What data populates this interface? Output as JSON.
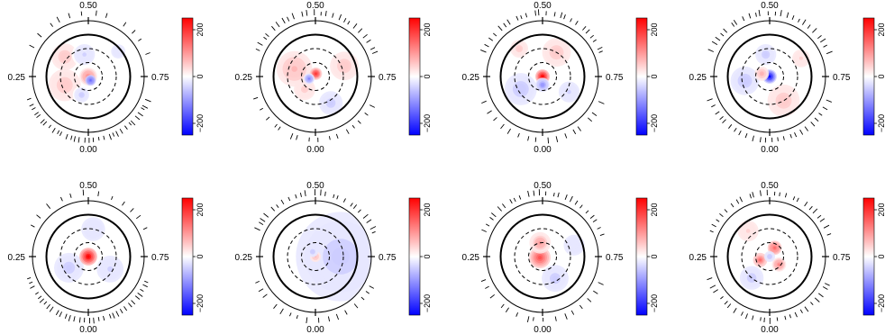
{
  "chart_data": {
    "type": "heatmap",
    "description_values": "polar Doppler-map panels; colour scale in map units",
    "colorbar": {
      "min": -250,
      "max": 250,
      "ticks": [
        200,
        0,
        -200
      ],
      "tick_labels": [
        "200",
        "0",
        "−200"
      ],
      "colors": {
        "max": "#ff0000",
        "mid": "#ffffff",
        "min": "#0000ff"
      }
    },
    "phase_labels": {
      "top": "0.50",
      "bottom": "0.00",
      "left": "0.25",
      "right": "0.75"
    },
    "rings": {
      "outer_solid": 1.0,
      "inner_solid": 0.75,
      "dashed": [
        0.5,
        0.25
      ]
    },
    "panels": [
      {
        "name": "panel-1",
        "blobs": [
          {
            "r": 0.0,
            "theta": 0,
            "value": 120,
            "spread": 0.1
          },
          {
            "r": 0.08,
            "theta": 300,
            "value": -160,
            "spread": 0.06
          },
          {
            "r": 0.45,
            "theta": 200,
            "value": 60,
            "spread": 0.18
          },
          {
            "r": 0.55,
            "theta": 140,
            "value": 55,
            "spread": 0.15
          },
          {
            "r": 0.4,
            "theta": 100,
            "value": -40,
            "spread": 0.14
          },
          {
            "r": 0.7,
            "theta": 40,
            "value": -30,
            "spread": 0.12
          },
          {
            "r": 0.35,
            "theta": 250,
            "value": -45,
            "spread": 0.1
          }
        ],
        "ticks_bottom_density": 3,
        "ticks_top_density": 1
      },
      {
        "name": "panel-2",
        "blobs": [
          {
            "r": 0.05,
            "theta": 80,
            "value": 210,
            "spread": 0.07
          },
          {
            "r": 0.12,
            "theta": 200,
            "value": -120,
            "spread": 0.06
          },
          {
            "r": 0.4,
            "theta": 160,
            "value": 70,
            "spread": 0.2
          },
          {
            "r": 0.55,
            "theta": 20,
            "value": 60,
            "spread": 0.16
          },
          {
            "r": 0.55,
            "theta": 300,
            "value": -50,
            "spread": 0.16
          },
          {
            "r": 0.3,
            "theta": 230,
            "value": 50,
            "spread": 0.12
          }
        ],
        "ticks_bottom_density": 1,
        "ticks_top_density": 3
      },
      {
        "name": "panel-3",
        "blobs": [
          {
            "r": 0.0,
            "theta": 0,
            "value": 250,
            "spread": 0.08
          },
          {
            "r": 0.15,
            "theta": 270,
            "value": -110,
            "spread": 0.08
          },
          {
            "r": 0.45,
            "theta": 210,
            "value": -55,
            "spread": 0.18
          },
          {
            "r": 0.5,
            "theta": 60,
            "value": 60,
            "spread": 0.16
          },
          {
            "r": 0.65,
            "theta": 130,
            "value": 45,
            "spread": 0.12
          },
          {
            "r": 0.55,
            "theta": 330,
            "value": -40,
            "spread": 0.14
          }
        ],
        "ticks_bottom_density": 1,
        "ticks_top_density": 3
      },
      {
        "name": "panel-4",
        "blobs": [
          {
            "r": 0.0,
            "theta": 0,
            "value": -250,
            "spread": 0.08
          },
          {
            "r": 0.15,
            "theta": 160,
            "value": 80,
            "spread": 0.08
          },
          {
            "r": 0.45,
            "theta": 190,
            "value": -60,
            "spread": 0.16
          },
          {
            "r": 0.5,
            "theta": 300,
            "value": 60,
            "spread": 0.18
          },
          {
            "r": 0.4,
            "theta": 100,
            "value": -45,
            "spread": 0.14
          },
          {
            "r": 0.65,
            "theta": 30,
            "value": 40,
            "spread": 0.12
          }
        ],
        "ticks_bottom_density": 2,
        "ticks_top_density": 3
      },
      {
        "name": "panel-5",
        "blobs": [
          {
            "r": 0.0,
            "theta": 0,
            "value": 250,
            "spread": 0.1
          },
          {
            "r": 0.4,
            "theta": 210,
            "value": -45,
            "spread": 0.2
          },
          {
            "r": 0.45,
            "theta": 330,
            "value": -40,
            "spread": 0.18
          },
          {
            "r": 0.5,
            "theta": 80,
            "value": -35,
            "spread": 0.16
          }
        ],
        "ticks_bottom_density": 3,
        "ticks_top_density": 1
      },
      {
        "name": "panel-6",
        "blobs": [
          {
            "r": 0.0,
            "theta": 0,
            "value": 70,
            "spread": 0.06
          },
          {
            "r": 0.45,
            "theta": 0,
            "value": -45,
            "spread": 0.6
          },
          {
            "r": 0.1,
            "theta": 120,
            "value": -60,
            "spread": 0.06
          }
        ],
        "ticks_bottom_density": 1,
        "ticks_top_density": 3
      },
      {
        "name": "panel-7",
        "blobs": [
          {
            "r": 0.05,
            "theta": 200,
            "value": 180,
            "spread": 0.12
          },
          {
            "r": 0.25,
            "theta": 100,
            "value": 90,
            "spread": 0.12
          },
          {
            "r": 0.45,
            "theta": 300,
            "value": -50,
            "spread": 0.18
          },
          {
            "r": 0.6,
            "theta": 20,
            "value": -35,
            "spread": 0.14
          }
        ],
        "ticks_bottom_density": 1,
        "ticks_top_density": 3
      },
      {
        "name": "panel-8",
        "blobs": [
          {
            "r": 0.18,
            "theta": 60,
            "value": 160,
            "spread": 0.08
          },
          {
            "r": 0.18,
            "theta": 200,
            "value": 150,
            "spread": 0.08
          },
          {
            "r": 0.22,
            "theta": 320,
            "value": 120,
            "spread": 0.08
          },
          {
            "r": 0.0,
            "theta": 0,
            "value": -60,
            "spread": 0.06
          },
          {
            "r": 0.5,
            "theta": 230,
            "value": -50,
            "spread": 0.16
          },
          {
            "r": 0.6,
            "theta": 130,
            "value": 40,
            "spread": 0.14
          }
        ],
        "ticks_bottom_density": 2,
        "ticks_top_density": 3
      }
    ]
  }
}
